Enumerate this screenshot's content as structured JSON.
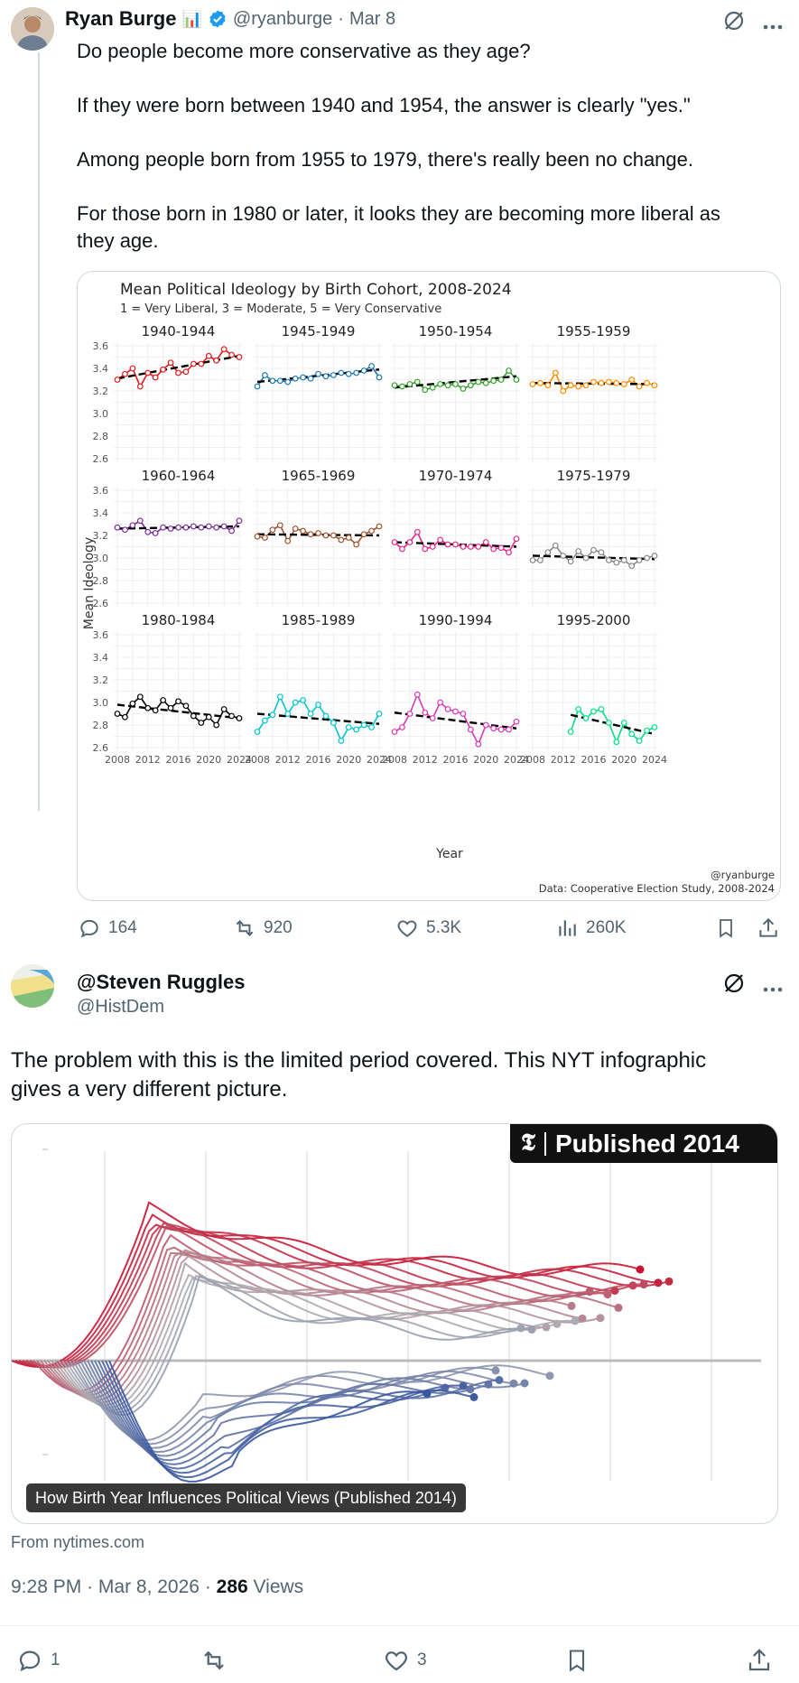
{
  "tweet1": {
    "author_name": "Ryan Burge",
    "author_emoji": "📊",
    "handle": "@ryanburge",
    "dot": "·",
    "date": "Mar 8",
    "paragraphs": [
      "Do people become more conservative as they age?",
      "If they were born between 1940 and 1954, the answer is clearly \"yes.\"",
      "Among people born from 1955 to 1979, there's really been no change.",
      "For those born in 1980 or later, it looks they are becoming more liberal as",
      "they age."
    ],
    "actions": {
      "replies": "164",
      "reposts": "920",
      "likes": "5.3K",
      "views": "260K"
    }
  },
  "chart_data": {
    "type": "line",
    "title": "Mean Political Ideology by Birth Cohort, 2008-2024",
    "subtitle": "1 = Very Liberal, 3 = Moderate, 5 = Very Conservative",
    "ylabel": "Mean Ideology",
    "xlabel": "Year",
    "ylim": [
      2.6,
      3.6
    ],
    "yticks": [
      "3.6",
      "3.4",
      "3.2",
      "3.0",
      "2.8",
      "2.6"
    ],
    "xticks": [
      "2008",
      "2012",
      "2016",
      "2020",
      "2024"
    ],
    "credit": "@ryanburge",
    "source": "Data: Cooperative Election Study, 2008-2024",
    "x": [
      2008,
      2009,
      2010,
      2011,
      2012,
      2013,
      2014,
      2015,
      2016,
      2017,
      2018,
      2019,
      2020,
      2021,
      2022,
      2023,
      2024
    ],
    "series": [
      {
        "name": "1940-1944",
        "color": "#e31a1c",
        "values": [
          3.3,
          3.35,
          3.4,
          3.24,
          3.36,
          3.32,
          3.39,
          3.45,
          3.36,
          3.37,
          3.44,
          3.44,
          3.51,
          3.47,
          3.57,
          3.52,
          3.5
        ],
        "trend": [
          3.31,
          3.51
        ]
      },
      {
        "name": "1945-1949",
        "color": "#1f78b4",
        "values": [
          3.24,
          3.34,
          3.29,
          3.29,
          3.28,
          3.31,
          3.32,
          3.31,
          3.35,
          3.33,
          3.34,
          3.36,
          3.35,
          3.36,
          3.38,
          3.42,
          3.32
        ],
        "trend": [
          3.28,
          3.39
        ]
      },
      {
        "name": "1950-1954",
        "color": "#33a02c",
        "values": [
          3.25,
          3.24,
          3.26,
          3.28,
          3.21,
          3.23,
          3.26,
          3.25,
          3.26,
          3.22,
          3.25,
          3.28,
          3.27,
          3.29,
          3.3,
          3.38,
          3.3
        ],
        "trend": [
          3.23,
          3.33
        ]
      },
      {
        "name": "1955-1959",
        "color": "#ff8c00",
        "values": [
          3.26,
          3.27,
          3.25,
          3.36,
          3.2,
          3.25,
          3.24,
          3.25,
          3.28,
          3.27,
          3.28,
          3.27,
          3.26,
          3.3,
          3.24,
          3.27,
          3.25
        ],
        "trend": [
          3.27,
          3.26
        ]
      },
      {
        "name": "1960-1964",
        "color": "#7b2f9e",
        "values": [
          3.27,
          3.25,
          3.29,
          3.33,
          3.23,
          3.22,
          3.27,
          3.26,
          3.27,
          3.27,
          3.28,
          3.27,
          3.28,
          3.27,
          3.28,
          3.24,
          3.33
        ],
        "trend": [
          3.26,
          3.28
        ]
      },
      {
        "name": "1965-1969",
        "color": "#a0522d",
        "values": [
          3.19,
          3.18,
          3.25,
          3.29,
          3.15,
          3.26,
          3.24,
          3.21,
          3.22,
          3.2,
          3.2,
          3.16,
          3.18,
          3.12,
          3.21,
          3.24,
          3.28
        ],
        "trend": [
          3.21,
          3.2
        ]
      },
      {
        "name": "1970-1974",
        "color": "#e7298a",
        "values": [
          3.14,
          3.08,
          3.14,
          3.23,
          3.08,
          3.1,
          3.16,
          3.12,
          3.12,
          3.1,
          3.1,
          3.1,
          3.14,
          3.08,
          3.09,
          3.05,
          3.17
        ],
        "trend": [
          3.14,
          3.1
        ]
      },
      {
        "name": "1975-1979",
        "color": "#888888",
        "values": [
          2.98,
          2.98,
          3.05,
          3.11,
          3.02,
          2.97,
          3.06,
          3.0,
          3.07,
          3.05,
          2.98,
          2.96,
          2.98,
          2.93,
          2.98,
          3.0,
          3.02
        ],
        "trend": [
          3.02,
          2.99
        ]
      },
      {
        "name": "1980-1984",
        "color": "#000000",
        "values": [
          2.9,
          2.87,
          2.99,
          3.05,
          2.95,
          2.93,
          3.02,
          2.95,
          3.01,
          2.97,
          2.88,
          2.82,
          2.87,
          2.8,
          2.94,
          2.88,
          2.86
        ],
        "trend": [
          2.98,
          2.86
        ]
      },
      {
        "name": "1985-1989",
        "color": "#00c5cd",
        "values": [
          2.74,
          2.84,
          2.89,
          3.05,
          2.9,
          3.0,
          3.02,
          2.9,
          2.98,
          2.88,
          2.82,
          2.66,
          2.78,
          2.76,
          2.8,
          2.78,
          2.9
        ],
        "trend": [
          2.9,
          2.81
        ]
      },
      {
        "name": "1990-1994",
        "color": "#d63ab8",
        "values": [
          2.74,
          2.78,
          2.9,
          3.07,
          2.91,
          2.86,
          3.0,
          2.94,
          2.92,
          2.9,
          2.76,
          2.63,
          2.8,
          2.77,
          2.76,
          2.76,
          2.83
        ],
        "trend": [
          2.91,
          2.77
        ]
      },
      {
        "name": "1995-2000",
        "color": "#00e083",
        "values": [
          null,
          null,
          null,
          null,
          null,
          2.74,
          2.94,
          2.86,
          2.92,
          2.94,
          2.82,
          2.65,
          2.82,
          2.72,
          2.66,
          2.75,
          2.78
        ],
        "trend": [
          2.89,
          2.72
        ]
      }
    ]
  },
  "tweet2": {
    "author_name": "@Steven Ruggles",
    "handle": "@HistDem",
    "text": [
      "The problem with this is the limited period covered. This NYT infographic",
      "gives a very different picture."
    ],
    "nyt_logo": "𝕿",
    "card_badge": "Published 2014",
    "card_caption": "How Birth Year Influences Political Views (Published 2014)",
    "card_source": "From nytimes.com",
    "time": "9:28 PM",
    "date": "Mar 8, 2026",
    "views_count": "286",
    "views_label": " Views",
    "actions": {
      "replies": "1",
      "likes": "3"
    }
  },
  "colors": {
    "accent": "#1d9bf0",
    "muted": "#536471",
    "red": "#c8102e",
    "blue": "#3b5ba5"
  }
}
